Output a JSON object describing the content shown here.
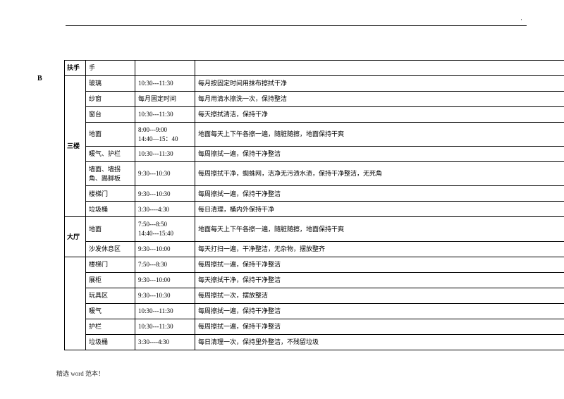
{
  "header_dot": "'",
  "side_label": "B",
  "footer": "精选 word 范本！",
  "groups": [
    {
      "label": "扶手",
      "rows": [
        {
          "item": "手",
          "time": "",
          "desc": ""
        }
      ]
    },
    {
      "label": "三楼",
      "rows": [
        {
          "item": "玻璃",
          "time": "10:30---11:30",
          "desc": "每月按固定时间用抹布擦拭干净"
        },
        {
          "item": "纱窗",
          "time": "每月固定时间",
          "desc": "每月用清水擦洗一次，保持整洁"
        },
        {
          "item": "窗台",
          "time": "10:30---11:30",
          "desc": "每天擦拭清洁，保持干净"
        },
        {
          "item": "地面",
          "time": "8:00---9:00\n14:40—15：40",
          "desc": "地面每天上下午各擦一遍，随脏随擦，地面保持干爽"
        },
        {
          "item": "暖气、护栏",
          "time": "10:30---11:30",
          "desc": "每周擦拭一遍，保持干净整洁"
        },
        {
          "item": "墙面、墙拐角、踢脚板",
          "time": "9:30---10:30",
          "desc": "每周擦拭干净，蜘蛛网，洁净无污渍水渍，保持干净整洁，无死角"
        },
        {
          "item": "楼梯门",
          "time": "9:30---10:30",
          "desc": "每周擦拭一遍，保持干净整洁"
        },
        {
          "item": "垃圾桶",
          "time": "3:30----4:30",
          "desc": "每日清理，桶内外保持干净"
        }
      ]
    },
    {
      "label": "大厅",
      "rows": [
        {
          "item": "地面",
          "time": "7:50---8:50\n14:40---15:40",
          "desc": "地面每天上下午各擦一遍，随脏随擦，地面保持干爽"
        },
        {
          "item": "沙发休息区",
          "time": "9:30---10:00",
          "desc": "每天打扫一遍，干净整洁，无杂物，摆放整齐"
        }
      ]
    },
    {
      "label": "",
      "rows": [
        {
          "item": "楼梯门",
          "time": "7:50---8:30",
          "desc": "每周擦拭一遍，保持干净整洁"
        },
        {
          "item": "展柜",
          "time": "9:30---10:00",
          "desc": "每天擦拭干净，保持干净整洁"
        },
        {
          "item": "玩具区",
          "time": "9:30---10:30",
          "desc": "每周擦拭一次，摆放整洁"
        },
        {
          "item": "暖气",
          "time": "10:30---11:30",
          "desc": "每周擦拭一遍，保持干净整洁"
        },
        {
          "item": "护栏",
          "time": "10:30---11:30",
          "desc": "每周擦拭一遍，保持干净整洁"
        },
        {
          "item": "垃圾桶",
          "time": "3:30----4:30",
          "desc": "每日清理一次，保持里外整洁，不残留垃圾"
        }
      ]
    }
  ]
}
